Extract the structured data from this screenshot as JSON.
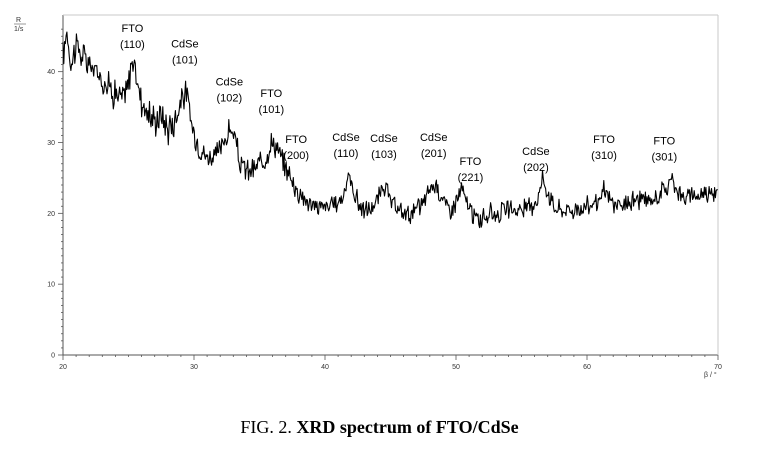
{
  "chart_data": {
    "type": "line",
    "axis_unit_y_top": "R",
    "axis_unit_y_bottom": "1/s",
    "axis_unit_x": "β / °",
    "xlim": [
      20,
      70
    ],
    "ylim": [
      0,
      48
    ],
    "x_ticks": [
      20,
      30,
      40,
      50,
      60,
      70
    ],
    "y_ticks": [
      0,
      10,
      20,
      30,
      40
    ],
    "line_color": "#000000",
    "anchors": [
      [
        20.0,
        42
      ],
      [
        20.3,
        46
      ],
      [
        20.6,
        41
      ],
      [
        21.0,
        44
      ],
      [
        21.5,
        42
      ],
      [
        22.0,
        41
      ],
      [
        22.5,
        40
      ],
      [
        23.0,
        39
      ],
      [
        23.5,
        38
      ],
      [
        24.0,
        37
      ],
      [
        24.5,
        36
      ],
      [
        25.0,
        38
      ],
      [
        25.25,
        42
      ],
      [
        25.5,
        40
      ],
      [
        26.0,
        36
      ],
      [
        26.5,
        34
      ],
      [
        27.0,
        33
      ],
      [
        27.5,
        34
      ],
      [
        28.0,
        32
      ],
      [
        28.5,
        33
      ],
      [
        29.0,
        36
      ],
      [
        29.3,
        37
      ],
      [
        29.6,
        35
      ],
      [
        30.0,
        31
      ],
      [
        30.5,
        29
      ],
      [
        31.0,
        28
      ],
      [
        31.5,
        28
      ],
      [
        32.0,
        29
      ],
      [
        32.5,
        31
      ],
      [
        32.8,
        32
      ],
      [
        33.2,
        30
      ],
      [
        33.5,
        27
      ],
      [
        34.0,
        26
      ],
      [
        34.5,
        26
      ],
      [
        35.0,
        27
      ],
      [
        35.5,
        28
      ],
      [
        35.9,
        30
      ],
      [
        36.3,
        29.5
      ],
      [
        36.8,
        27
      ],
      [
        37.2,
        26
      ],
      [
        37.6,
        24
      ],
      [
        38.0,
        23
      ],
      [
        38.5,
        22
      ],
      [
        39.0,
        21
      ],
      [
        39.5,
        21
      ],
      [
        40.0,
        21
      ],
      [
        40.5,
        21
      ],
      [
        41.0,
        21.5
      ],
      [
        41.5,
        23
      ],
      [
        41.8,
        25.5
      ],
      [
        42.2,
        23
      ],
      [
        42.8,
        20.5
      ],
      [
        43.3,
        20.5
      ],
      [
        43.8,
        21
      ],
      [
        44.3,
        23
      ],
      [
        44.6,
        24
      ],
      [
        45.0,
        21.5
      ],
      [
        45.5,
        20.5
      ],
      [
        46.0,
        20
      ],
      [
        46.5,
        20
      ],
      [
        47.0,
        20.5
      ],
      [
        47.5,
        21.5
      ],
      [
        48.0,
        23.5
      ],
      [
        48.5,
        24
      ],
      [
        49.0,
        22
      ],
      [
        49.5,
        20.5
      ],
      [
        50.0,
        21.5
      ],
      [
        50.4,
        23.5
      ],
      [
        50.7,
        22
      ],
      [
        51.2,
        20
      ],
      [
        51.7,
        19
      ],
      [
        52.2,
        19.5
      ],
      [
        52.7,
        20
      ],
      [
        53.2,
        20
      ],
      [
        53.7,
        20.5
      ],
      [
        54.2,
        20.5
      ],
      [
        54.7,
        20.5
      ],
      [
        55.2,
        20.5
      ],
      [
        55.7,
        21
      ],
      [
        56.2,
        22
      ],
      [
        56.6,
        25
      ],
      [
        57.0,
        23
      ],
      [
        57.5,
        21
      ],
      [
        58.0,
        20.5
      ],
      [
        58.5,
        20.5
      ],
      [
        59.0,
        20.5
      ],
      [
        59.5,
        20.5
      ],
      [
        60.0,
        21
      ],
      [
        60.5,
        21.5
      ],
      [
        61.0,
        21.5
      ],
      [
        61.3,
        23.5
      ],
      [
        61.7,
        22
      ],
      [
        62.2,
        21
      ],
      [
        62.7,
        21
      ],
      [
        63.2,
        21.5
      ],
      [
        63.7,
        22
      ],
      [
        64.2,
        22
      ],
      [
        64.7,
        21.5
      ],
      [
        65.2,
        22
      ],
      [
        65.6,
        23
      ],
      [
        66.1,
        23.5
      ],
      [
        66.5,
        25
      ],
      [
        67.0,
        23
      ],
      [
        67.5,
        22
      ],
      [
        68.0,
        22.5
      ],
      [
        68.5,
        22.5
      ],
      [
        69.0,
        23
      ],
      [
        69.5,
        23
      ],
      [
        70.0,
        23.5
      ]
    ],
    "peaks": [
      {
        "x": 25.3,
        "line1": "FTO",
        "line2": "(110)"
      },
      {
        "x": 29.3,
        "line1": "CdSe",
        "line2": "(101)"
      },
      {
        "x": 32.7,
        "line1": "CdSe",
        "line2": "(102)"
      },
      {
        "x": 35.9,
        "line1": "FTO",
        "line2": "(101)"
      },
      {
        "x": 37.8,
        "line1": "FTO",
        "line2": "(200)"
      },
      {
        "x": 41.6,
        "line1": "CdSe",
        "line2": "(110)"
      },
      {
        "x": 44.5,
        "line1": "CdSe",
        "line2": "(103)"
      },
      {
        "x": 48.3,
        "line1": "CdSe",
        "line2": "(201)"
      },
      {
        "x": 51.1,
        "line1": "FTO",
        "line2": "(221)"
      },
      {
        "x": 56.1,
        "line1": "CdSe",
        "line2": "(202)"
      },
      {
        "x": 61.3,
        "line1": "FTO",
        "line2": "(310)"
      },
      {
        "x": 65.9,
        "line1": "FTO",
        "line2": "(301)"
      }
    ]
  },
  "caption": {
    "prefix": "FIG. 2. ",
    "bold": "XRD spectrum of FTO/CdSe"
  }
}
